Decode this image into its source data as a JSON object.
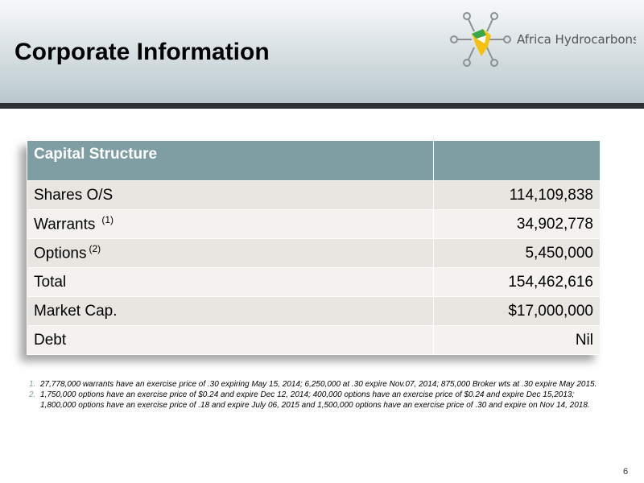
{
  "header": {
    "title": "Corporate Information",
    "logo_text": "Africa Hydrocarbons"
  },
  "table": {
    "heading": "Capital Structure",
    "rows": [
      {
        "label": "Shares O/S",
        "value": "114,109,838"
      },
      {
        "label": "Warrants",
        "note": "(1)",
        "value": "34,902,778"
      },
      {
        "label": "Options",
        "note": "(2)",
        "value": "5,450,000"
      },
      {
        "label": "Total",
        "value": "154,462,616"
      },
      {
        "label": "Market Cap.",
        "value": "$17,000,000"
      },
      {
        "label": "Debt",
        "value": "Nil"
      }
    ]
  },
  "footnotes": [
    {
      "marker": "1.",
      "text": "27,778,000 warrants have an exercise price of .30  expiring May 15, 2014; 6,250,000 at .30 expire Nov.07, 2014; 875,000 Broker wts at .30 expire May 2015."
    },
    {
      "marker": "2.",
      "text": "1,750,000 options have an exercise price of $0.24 and expire Dec 12, 2014; 400,000 options have an exercise price of $0.24 and expire Dec 15,2013; 1,800,000 options have an exercise price of .18 and expire July 06, 2015 and 1,500,000 options have an exercise price of .30 and expire on Nov 14, 2018."
    }
  ],
  "page_number": "6"
}
